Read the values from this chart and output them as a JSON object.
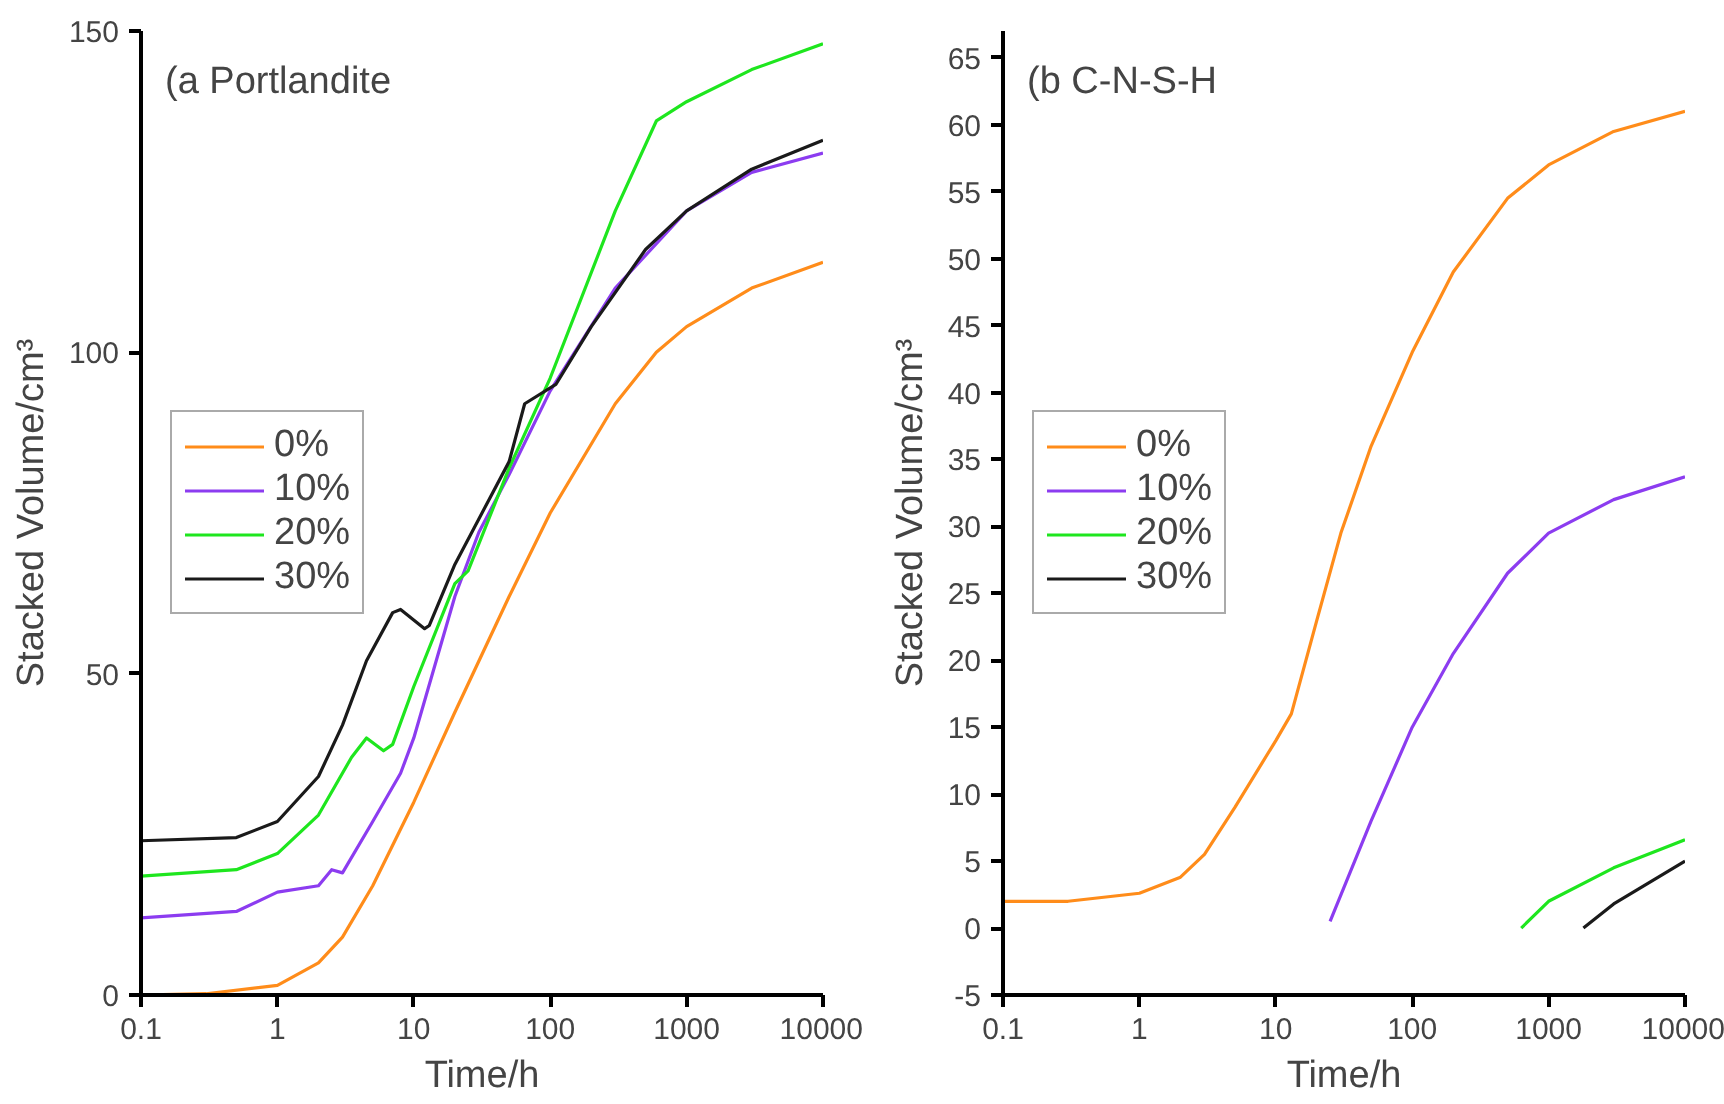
{
  "chart_data": [
    {
      "type": "line",
      "title": "(a Portlandite",
      "xlabel": "Time/h",
      "ylabel": "Stacked Volume/cm³",
      "log": "x",
      "legend": "left",
      "xlim": [
        0.1,
        10000
      ],
      "xticks": [
        0.1,
        1,
        10,
        100,
        1000,
        10000
      ],
      "ylim": [
        0,
        150
      ],
      "yticks": [
        0,
        50,
        100,
        150
      ],
      "series": [
        {
          "name": "0%",
          "color": "#ff8c1a",
          "x": [
            0.1,
            0.3,
            1,
            2,
            3,
            5,
            10,
            20,
            50,
            100,
            300,
            600,
            1000,
            3000,
            10000
          ],
          "values": [
            0,
            0.2,
            1.5,
            5,
            9,
            17,
            30,
            44,
            62,
            75,
            92,
            100,
            104,
            110,
            114
          ]
        },
        {
          "name": "10%",
          "color": "#8c3cf0",
          "x": [
            0.1,
            0.5,
            1,
            2,
            2.5,
            3,
            5,
            8,
            10,
            20,
            30,
            50,
            100,
            300,
            1000,
            3000,
            10000
          ],
          "values": [
            12,
            13,
            16,
            17,
            19.5,
            19,
            27,
            34.5,
            40,
            62,
            72,
            81,
            94,
            110,
            122,
            128,
            131
          ]
        },
        {
          "name": "20%",
          "color": "#1ee61e",
          "x": [
            0.1,
            0.5,
            1,
            2,
            3.5,
            4.5,
            6,
            7,
            10,
            20,
            25,
            50,
            100,
            300,
            600,
            1000,
            3000,
            10000
          ],
          "values": [
            18.5,
            19.5,
            22,
            28,
            37,
            40,
            38,
            39,
            48,
            64,
            66,
            82,
            96,
            122,
            136,
            139,
            144,
            148
          ]
        },
        {
          "name": "30%",
          "color": "#1a1a1a",
          "x": [
            0.1,
            0.5,
            1,
            2,
            3,
            4.5,
            7,
            8,
            12,
            13,
            20,
            50,
            65,
            110,
            200,
            500,
            1000,
            3000,
            10000
          ],
          "values": [
            24,
            24.5,
            27,
            34,
            42,
            52,
            59.5,
            60,
            57,
            57.5,
            67,
            83,
            92,
            95,
            104,
            116,
            122,
            128.5,
            133
          ]
        }
      ]
    },
    {
      "type": "line",
      "title": "(b C-N-S-H",
      "xlabel": "Time/h",
      "ylabel": "Stacked Volume/cm³",
      "log": "x",
      "legend": "left",
      "xlim": [
        0.1,
        10000
      ],
      "xticks": [
        0.1,
        1,
        10,
        100,
        1000,
        10000
      ],
      "ylim": [
        -5,
        67
      ],
      "yticks": [
        -5,
        0,
        5,
        10,
        15,
        20,
        25,
        30,
        35,
        40,
        45,
        50,
        55,
        60,
        65
      ],
      "series": [
        {
          "name": "0%",
          "color": "#ff8c1a",
          "x": [
            0.1,
            0.3,
            1,
            2,
            3,
            5,
            10,
            13,
            20,
            30,
            50,
            100,
            200,
            500,
            1000,
            3000,
            10000
          ],
          "values": [
            2,
            2,
            2.6,
            3.8,
            5.5,
            9,
            14,
            16,
            23,
            29.5,
            36,
            43,
            49,
            54.5,
            57,
            59.5,
            61
          ]
        },
        {
          "name": "10%",
          "color": "#8c3cf0",
          "x": [
            25,
            50,
            100,
            200,
            500,
            1000,
            3000,
            10000
          ],
          "values": [
            0.5,
            8,
            15,
            20.5,
            26.5,
            29.5,
            32,
            33.7
          ]
        },
        {
          "name": "20%",
          "color": "#1ee61e",
          "x": [
            630,
            1000,
            3000,
            10000
          ],
          "values": [
            0,
            2,
            4.5,
            6.6
          ]
        },
        {
          "name": "30%",
          "color": "#1a1a1a",
          "x": [
            1800,
            3000,
            10000
          ],
          "values": [
            0,
            1.8,
            5
          ]
        }
      ]
    }
  ]
}
